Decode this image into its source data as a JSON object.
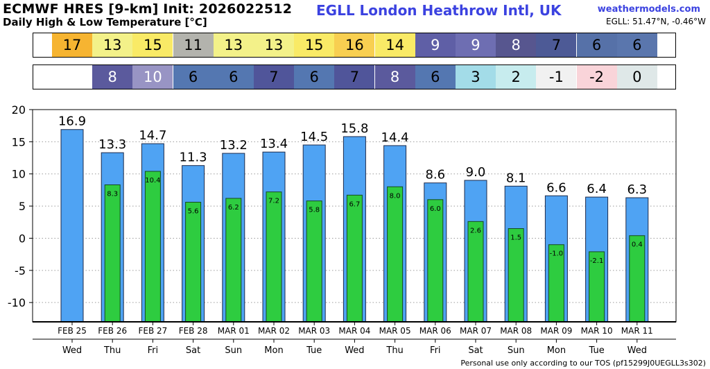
{
  "header": {
    "title": "ECMWF HRES [9-km] Init: 2026022512",
    "subtitle": "Daily High & Low Temperature [°C]",
    "station": "EGLL London Heathrow Intl,  UK",
    "site": "weathermodels.com",
    "coords": "EGLL: 51.47°N, -0.46°W"
  },
  "footer": {
    "text": "Personal use only according to our TOS (pf15299J0UEGLL3s302)"
  },
  "high_strip": [
    {
      "v": "17",
      "bg": "#f6b431",
      "fg": "#000000"
    },
    {
      "v": "13",
      "bg": "#f3f189",
      "fg": "#000000"
    },
    {
      "v": "15",
      "bg": "#f9ea66",
      "fg": "#000000"
    },
    {
      "v": "11",
      "bg": "#b3b3ad",
      "fg": "#000000"
    },
    {
      "v": "13",
      "bg": "#f3f189",
      "fg": "#000000"
    },
    {
      "v": "13",
      "bg": "#f3f189",
      "fg": "#000000"
    },
    {
      "v": "15",
      "bg": "#f9ea66",
      "fg": "#000000"
    },
    {
      "v": "16",
      "bg": "#f8cf51",
      "fg": "#000000"
    },
    {
      "v": "14",
      "bg": "#f9ea66",
      "fg": "#000000"
    },
    {
      "v": "9",
      "bg": "#5f5fa6",
      "fg": "#ffffff"
    },
    {
      "v": "9",
      "bg": "#6e6eb2",
      "fg": "#ffffff"
    },
    {
      "v": "8",
      "bg": "#57568f",
      "fg": "#ffffff"
    },
    {
      "v": "7",
      "bg": "#4d5a96",
      "fg": "#000000"
    },
    {
      "v": "6",
      "bg": "#5671a8",
      "fg": "#000000"
    },
    {
      "v": "6",
      "bg": "#5a76ad",
      "fg": "#000000"
    }
  ],
  "low_strip": [
    {
      "v": "",
      "bg": "#ffffff",
      "fg": "#000000"
    },
    {
      "v": "8",
      "bg": "#5b5a9d",
      "fg": "#ffffff"
    },
    {
      "v": "10",
      "bg": "#9894c4",
      "fg": "#ffffff"
    },
    {
      "v": "6",
      "bg": "#5477b1",
      "fg": "#000000"
    },
    {
      "v": "6",
      "bg": "#5477b1",
      "fg": "#000000"
    },
    {
      "v": "7",
      "bg": "#50559a",
      "fg": "#000000"
    },
    {
      "v": "6",
      "bg": "#5477b1",
      "fg": "#000000"
    },
    {
      "v": "7",
      "bg": "#50559a",
      "fg": "#000000"
    },
    {
      "v": "8",
      "bg": "#5b5a9d",
      "fg": "#ffffff"
    },
    {
      "v": "6",
      "bg": "#5477b1",
      "fg": "#000000"
    },
    {
      "v": "3",
      "bg": "#a3dce8",
      "fg": "#000000"
    },
    {
      "v": "2",
      "bg": "#c7ecee",
      "fg": "#000000"
    },
    {
      "v": "-1",
      "bg": "#f1f1f1",
      "fg": "#000000"
    },
    {
      "v": "-2",
      "bg": "#f9d4d9",
      "fg": "#000000"
    },
    {
      "v": "0",
      "bg": "#dfe8e8",
      "fg": "#000000"
    }
  ],
  "chart_data": {
    "type": "bar",
    "categories": [
      "FEB 25",
      "FEB 26",
      "FEB 27",
      "FEB 28",
      "MAR 01",
      "MAR 02",
      "MAR 03",
      "MAR 04",
      "MAR 05",
      "MAR 06",
      "MAR 07",
      "MAR 08",
      "MAR 09",
      "MAR 10",
      "MAR 11"
    ],
    "weekdays": [
      "Wed",
      "Thu",
      "Fri",
      "Sat",
      "Sun",
      "Mon",
      "Tue",
      "Wed",
      "Thu",
      "Fri",
      "Sat",
      "Sun",
      "Mon",
      "Tue",
      "Wed"
    ],
    "series": [
      {
        "values": [
          16.9,
          13.3,
          14.7,
          11.3,
          13.2,
          13.4,
          14.5,
          15.8,
          14.4,
          8.6,
          9.0,
          8.1,
          6.6,
          6.4,
          6.3
        ],
        "color": "#4fa3f3",
        "labels": [
          "16.9",
          "13.3",
          "14.7",
          "11.3",
          "13.2",
          "13.4",
          "14.5",
          "15.8",
          "14.4",
          "8.6",
          "9.0",
          "8.1",
          "6.6",
          "6.4",
          "6.3"
        ]
      },
      {
        "values": [
          null,
          8.3,
          10.4,
          5.6,
          6.2,
          7.2,
          5.8,
          6.7,
          8.0,
          6.0,
          2.6,
          1.5,
          -1.0,
          -2.1,
          0.4
        ],
        "color": "#2ecc40",
        "labels": [
          "",
          "8.3",
          "10.4",
          "5.6",
          "6.2",
          "7.2",
          "5.8",
          "6.7",
          "8.0",
          "6.0",
          "2.6",
          "1.5",
          "-1.0",
          "-2.1",
          "0.4"
        ]
      }
    ],
    "ylim": [
      -13,
      20
    ],
    "yticks": [
      20,
      15,
      10,
      5,
      0,
      -5,
      -10
    ],
    "ytick_labels": [
      "20",
      "15",
      "10",
      "5",
      "0",
      "-5",
      "-10"
    ],
    "grid": true,
    "legend": "none"
  }
}
